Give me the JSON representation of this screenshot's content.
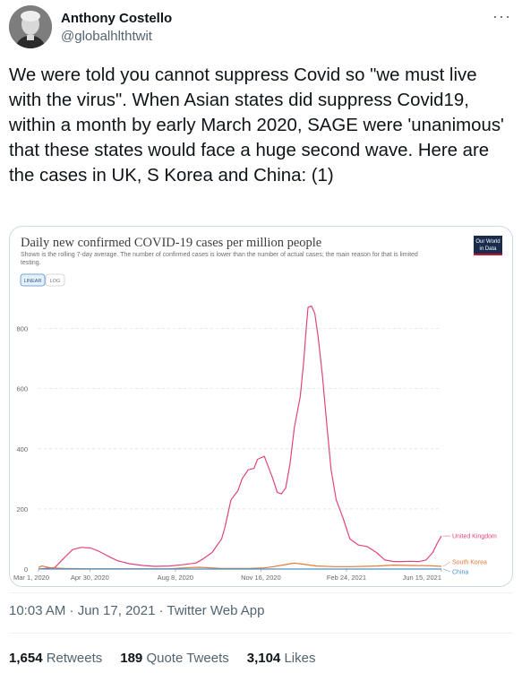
{
  "author": {
    "name": "Anthony Costello",
    "handle": "@globalhlthtwit"
  },
  "tweet": {
    "text": "We were told you cannot suppress Covid so \"we must live with the virus\". When Asian states did suppress Covid19, within a month by early March 2020, SAGE were 'unanimous' that these states would face a huge second wave. Here are the cases in UK, S Korea and China: (1)"
  },
  "meta": {
    "timestamp": "10:03 AM · Jun 17, 2021 · Twitter Web App"
  },
  "stats": {
    "retweets_count": "1,654",
    "retweets_label": "Retweets",
    "quotes_count": "189",
    "quotes_label": "Quote Tweets",
    "likes_count": "3,104",
    "likes_label": "Likes"
  },
  "icons": {
    "more": "more-dots-icon"
  },
  "colors": {
    "uk": "#e0457b",
    "south_korea": "#e07b3a",
    "china": "#4a90c8",
    "owid_badge": "#1a2c4e",
    "owid_badge_stripe": "#c8102e"
  },
  "chart_data": {
    "type": "line",
    "title": "Daily new confirmed COVID-19 cases per million people",
    "subtitle_line1": "Shown is the rolling 7-day average. The number of confirmed cases is lower than the number of actual cases; the main reason for that is limited",
    "subtitle_line2": "testing.",
    "badge_line1": "Our World",
    "badge_line2": "in Data",
    "scale_buttons": [
      "LINEAR",
      "LOG"
    ],
    "active_scale": "LINEAR",
    "y_ticks": [
      0,
      200,
      400,
      600,
      800
    ],
    "ylim": [
      0,
      900
    ],
    "x_labels": [
      "Mar 1, 2020",
      "Apr 30, 2020",
      "Aug 8, 2020",
      "Nov 16, 2020",
      "Feb 24, 2021",
      "Jun 15, 2021"
    ],
    "x_ticks": [
      "2020-03-01",
      "2020-04-30",
      "2020-08-08",
      "2020-11-16",
      "2021-02-24",
      "2021-06-15"
    ],
    "x_range": [
      "2020-03-01",
      "2021-06-15"
    ],
    "grid": true,
    "legend": "end-of-line labels",
    "series": [
      {
        "name": "United Kingdom",
        "x": [
          "2020-03-01",
          "2020-03-20",
          "2020-04-01",
          "2020-04-10",
          "2020-04-20",
          "2020-05-01",
          "2020-05-10",
          "2020-05-20",
          "2020-06-01",
          "2020-06-15",
          "2020-07-01",
          "2020-07-15",
          "2020-08-01",
          "2020-08-15",
          "2020-09-01",
          "2020-09-10",
          "2020-09-20",
          "2020-10-01",
          "2020-10-05",
          "2020-10-12",
          "2020-10-20",
          "2020-10-25",
          "2020-11-01",
          "2020-11-08",
          "2020-11-12",
          "2020-11-20",
          "2020-11-30",
          "2020-12-05",
          "2020-12-10",
          "2020-12-15",
          "2020-12-20",
          "2020-12-25",
          "2021-01-01",
          "2021-01-05",
          "2021-01-08",
          "2021-01-10",
          "2021-01-14",
          "2021-01-18",
          "2021-01-22",
          "2021-01-27",
          "2021-02-01",
          "2021-02-06",
          "2021-02-12",
          "2021-02-20",
          "2021-02-28",
          "2021-03-10",
          "2021-03-20",
          "2021-03-31",
          "2021-04-10",
          "2021-04-20",
          "2021-04-30",
          "2021-05-10",
          "2021-05-20",
          "2021-05-28",
          "2021-06-05",
          "2021-06-10",
          "2021-06-15"
        ],
        "y": [
          0,
          5,
          40,
          65,
          72,
          70,
          60,
          45,
          28,
          18,
          12,
          9,
          10,
          14,
          20,
          35,
          55,
          100,
          140,
          230,
          260,
          300,
          330,
          335,
          365,
          375,
          300,
          255,
          250,
          270,
          350,
          470,
          575,
          690,
          800,
          870,
          875,
          850,
          770,
          640,
          480,
          330,
          230,
          170,
          100,
          80,
          75,
          55,
          30,
          25,
          25,
          26,
          25,
          30,
          55,
          85,
          110
        ]
      },
      {
        "name": "South Korea",
        "x": [
          "2020-03-01",
          "2020-03-05",
          "2020-03-15",
          "2020-04-01",
          "2020-05-01",
          "2020-06-01",
          "2020-07-01",
          "2020-08-01",
          "2020-08-25",
          "2020-09-05",
          "2020-10-01",
          "2020-11-01",
          "2020-11-20",
          "2020-12-01",
          "2020-12-15",
          "2020-12-25",
          "2021-01-05",
          "2021-01-20",
          "2021-02-10",
          "2021-03-01",
          "2021-04-01",
          "2021-04-20",
          "2021-05-10",
          "2021-06-01",
          "2021-06-15"
        ],
        "y": [
          5,
          10,
          4,
          2,
          1,
          1,
          1,
          1,
          5,
          6,
          2,
          2,
          4,
          8,
          15,
          20,
          16,
          10,
          8,
          8,
          10,
          13,
          12,
          11,
          9
        ]
      },
      {
        "name": "China",
        "x": [
          "2020-03-01",
          "2020-03-15",
          "2020-04-01",
          "2020-06-01",
          "2020-08-01",
          "2020-10-01",
          "2020-12-01",
          "2021-01-15",
          "2021-03-01",
          "2021-06-15"
        ],
        "y": [
          0.2,
          0.1,
          0.1,
          0.05,
          0.1,
          0.05,
          0.05,
          0.1,
          0.05,
          0.05
        ]
      }
    ]
  }
}
